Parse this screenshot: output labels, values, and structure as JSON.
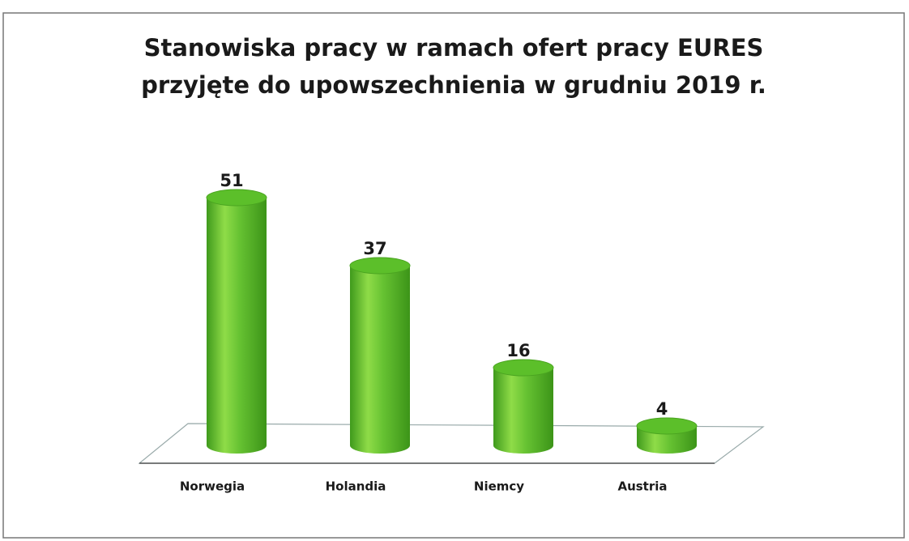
{
  "chart_data": {
    "type": "bar3d",
    "title": "Stanowiska pracy w ramach ofert pracy EURES przyjęte do upowszechnienia w grudniu 2019 r.",
    "categories": [
      "Norwegia",
      "Holandia",
      "Niemcy",
      "Austria"
    ],
    "values": [
      51,
      37,
      16,
      4
    ],
    "color": "#5cbf2a"
  }
}
